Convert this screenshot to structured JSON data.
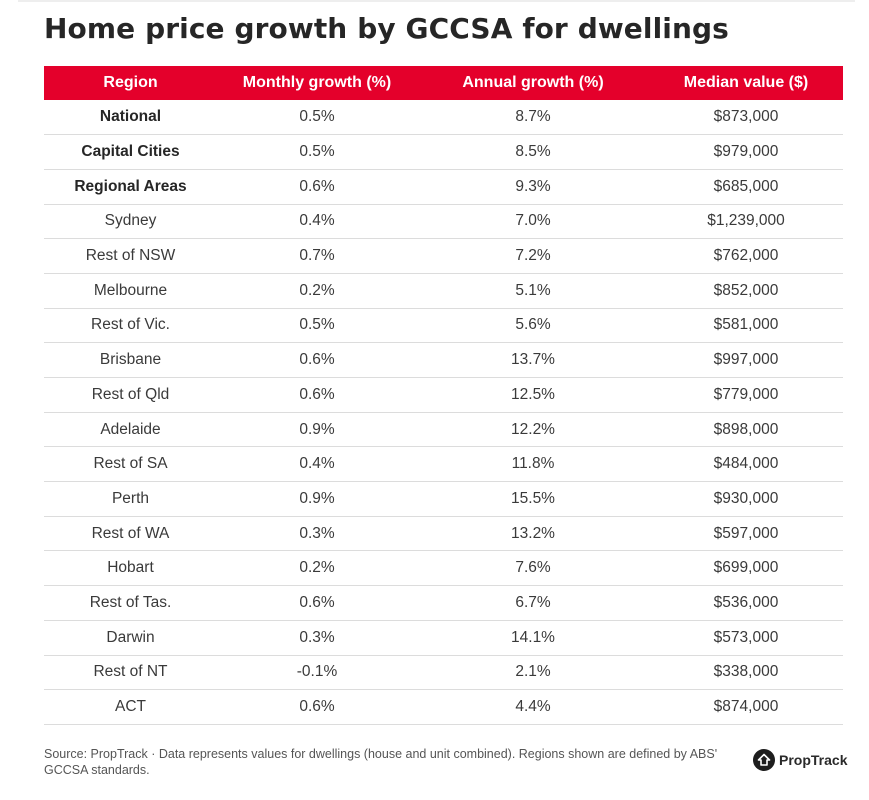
{
  "title": "Home price growth by GCCSA for dwellings",
  "colors": {
    "header_bg": "#e4002b",
    "header_text": "#ffffff",
    "row_divider": "#dcdcdc"
  },
  "table": {
    "headers": [
      "Region",
      "Monthly growth (%)",
      "Annual growth (%)",
      "Median value ($)"
    ],
    "rows": [
      {
        "region": "National",
        "bold": true,
        "monthly": "0.5%",
        "annual": "8.7%",
        "median": "$873,000"
      },
      {
        "region": "Capital Cities",
        "bold": true,
        "monthly": "0.5%",
        "annual": "8.5%",
        "median": "$979,000"
      },
      {
        "region": "Regional Areas",
        "bold": true,
        "monthly": "0.6%",
        "annual": "9.3%",
        "median": "$685,000"
      },
      {
        "region": "Sydney",
        "bold": false,
        "monthly": "0.4%",
        "annual": "7.0%",
        "median": "$1,239,000"
      },
      {
        "region": "Rest of NSW",
        "bold": false,
        "monthly": "0.7%",
        "annual": "7.2%",
        "median": "$762,000"
      },
      {
        "region": "Melbourne",
        "bold": false,
        "monthly": "0.2%",
        "annual": "5.1%",
        "median": "$852,000"
      },
      {
        "region": "Rest of Vic.",
        "bold": false,
        "monthly": "0.5%",
        "annual": "5.6%",
        "median": "$581,000"
      },
      {
        "region": "Brisbane",
        "bold": false,
        "monthly": "0.6%",
        "annual": "13.7%",
        "median": "$997,000"
      },
      {
        "region": "Rest of Qld",
        "bold": false,
        "monthly": "0.6%",
        "annual": "12.5%",
        "median": "$779,000"
      },
      {
        "region": "Adelaide",
        "bold": false,
        "monthly": "0.9%",
        "annual": "12.2%",
        "median": "$898,000"
      },
      {
        "region": "Rest of SA",
        "bold": false,
        "monthly": "0.4%",
        "annual": "11.8%",
        "median": "$484,000"
      },
      {
        "region": "Perth",
        "bold": false,
        "monthly": "0.9%",
        "annual": "15.5%",
        "median": "$930,000"
      },
      {
        "region": "Rest of WA",
        "bold": false,
        "monthly": "0.3%",
        "annual": "13.2%",
        "median": "$597,000"
      },
      {
        "region": "Hobart",
        "bold": false,
        "monthly": "0.2%",
        "annual": "7.6%",
        "median": "$699,000"
      },
      {
        "region": "Rest of Tas.",
        "bold": false,
        "monthly": "0.6%",
        "annual": "6.7%",
        "median": "$536,000"
      },
      {
        "region": "Darwin",
        "bold": false,
        "monthly": "0.3%",
        "annual": "14.1%",
        "median": "$573,000"
      },
      {
        "region": "Rest of NT",
        "bold": false,
        "monthly": "-0.1%",
        "annual": "2.1%",
        "median": "$338,000"
      },
      {
        "region": "ACT",
        "bold": false,
        "monthly": "0.6%",
        "annual": "4.4%",
        "median": "$874,000"
      }
    ]
  },
  "footer": {
    "source": "Source: PropTrack · Data represents values for dwellings (house and unit combined). Regions shown are defined by ABS' GCCSA standards."
  },
  "logo": {
    "icon": "house-icon",
    "text": "PropTrack"
  }
}
